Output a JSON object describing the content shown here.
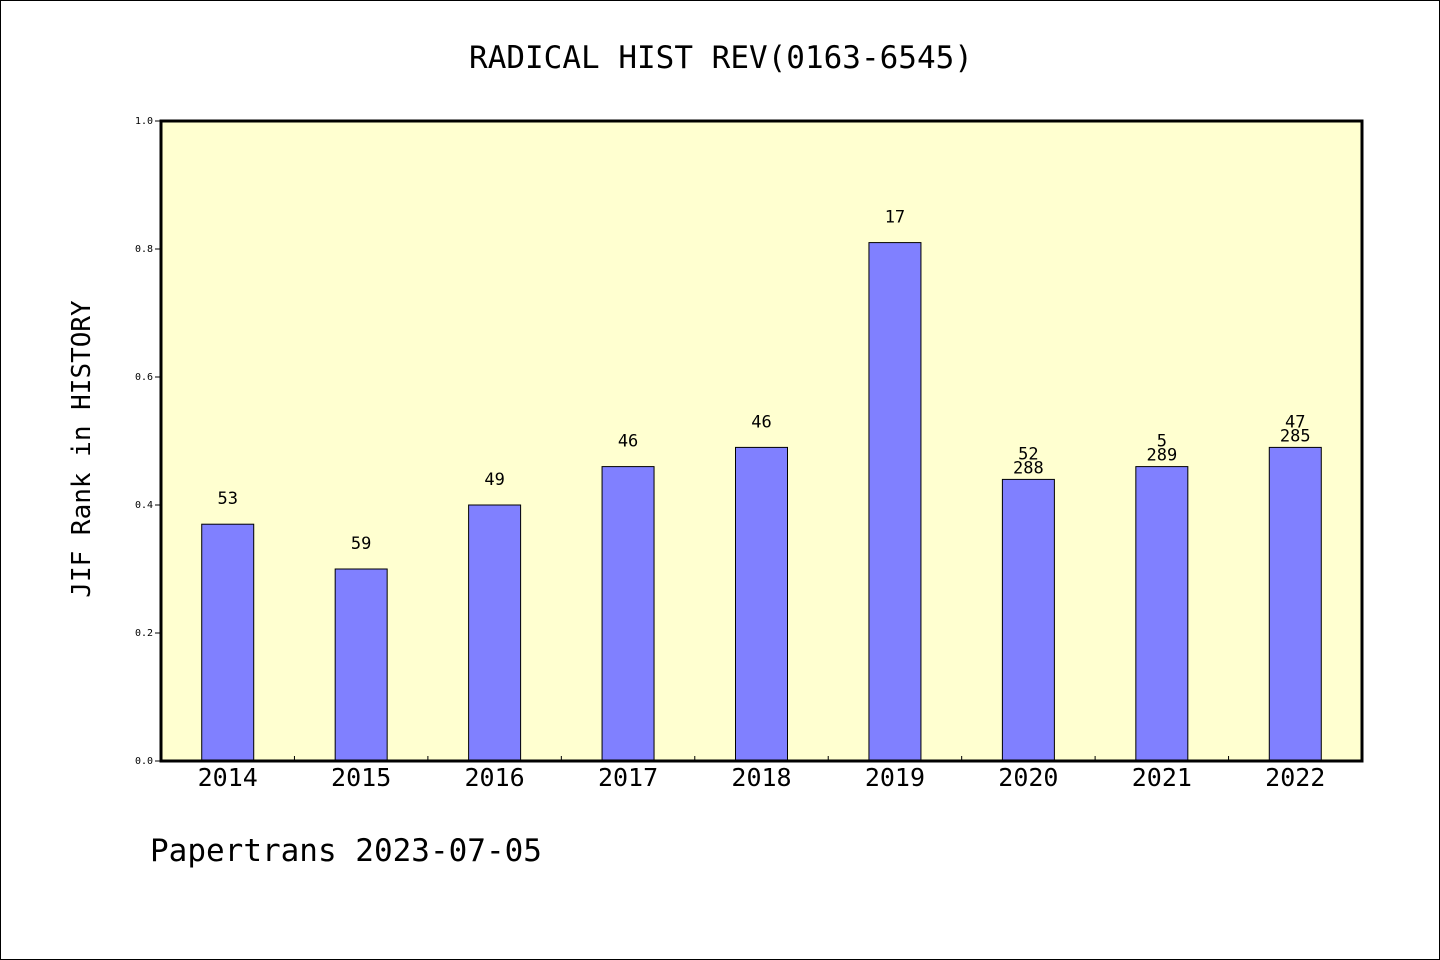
{
  "chart_data": {
    "type": "bar",
    "title": "RADICAL HIST REV(0163-6545)",
    "ylabel": "JIF Rank in HISTORY",
    "xlabel": "",
    "ylim": [
      0.0,
      1.0
    ],
    "yticks": [
      "0.0",
      "0.2",
      "0.4",
      "0.6",
      "0.8",
      "1.0"
    ],
    "categories": [
      "2014",
      "2015",
      "2016",
      "2017",
      "2018",
      "2019",
      "2020",
      "2021",
      "2022"
    ],
    "values": [
      0.37,
      0.3,
      0.4,
      0.46,
      0.49,
      0.81,
      0.44,
      0.46,
      0.49
    ],
    "bar_labels": [
      [
        "53"
      ],
      [
        "59"
      ],
      [
        "49"
      ],
      [
        "46"
      ],
      [
        "46"
      ],
      [
        "17"
      ],
      [
        "52",
        "288"
      ],
      [
        "5",
        "289"
      ],
      [
        "47",
        "285"
      ]
    ],
    "colors": {
      "bar": "#8080ff",
      "plot_bg": "#ffffd0",
      "axis": "#000000"
    },
    "grid": false
  },
  "footer": {
    "text": "Papertrans 2023-07-05"
  }
}
